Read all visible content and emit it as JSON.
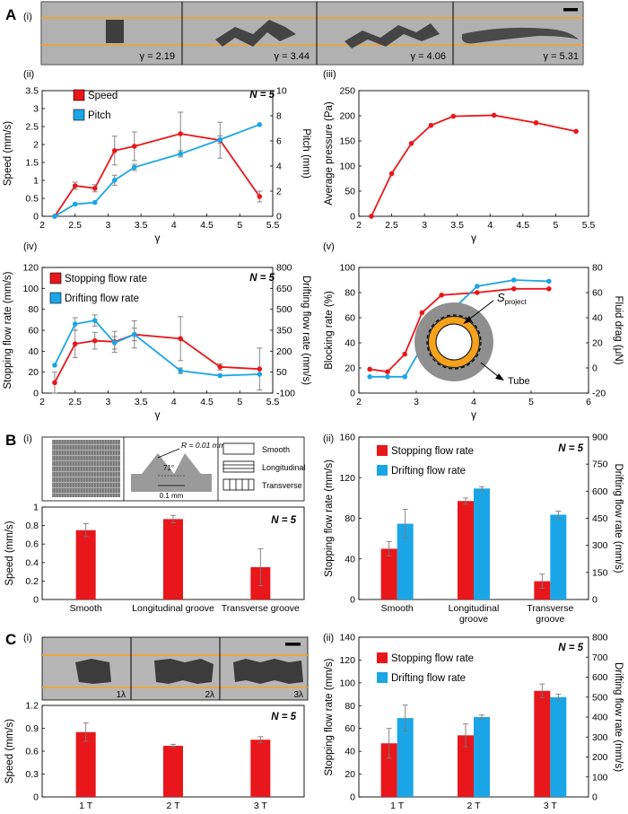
{
  "panel_letters": {
    "A": "A",
    "B": "B",
    "C": "C"
  },
  "sub_labels": {
    "i": "(i)",
    "ii": "(ii)",
    "iii": "(iii)",
    "iv": "(iv)",
    "v": "(v)"
  },
  "n_label": "N = 5",
  "colors": {
    "red": "#e8171b",
    "blue": "#1aa6e6",
    "orange": "#f7a21b",
    "error": "#7a7a7a"
  },
  "images": {
    "a_strip_labels": [
      "γ = 2.19",
      "γ = 3.44",
      "γ = 4.06",
      "γ = 5.31"
    ],
    "c_strip_labels": [
      "1λ",
      "2λ",
      "3λ"
    ],
    "tube_label": "Tube",
    "sproject_label": "S",
    "sproject_sub": "project",
    "groove_R_label": "R = 0.01 mm",
    "groove_angle_label": "71°",
    "groove_width_label": "0.1 mm",
    "legend_smooth": "Smooth",
    "legend_longitudinal": "Longitudinal",
    "legend_transverse": "Transverse"
  },
  "chart_data": [
    {
      "id": "A-ii",
      "type": "line",
      "xlabel": "γ",
      "ylabel": "Speed (mm/s)",
      "y2label": "Pitch (mm)",
      "xlim": [
        2,
        5.5
      ],
      "ylim": [
        0,
        3.5
      ],
      "y2lim": [
        0,
        10
      ],
      "x_ticks": [
        2,
        2.5,
        3,
        3.5,
        4,
        4.5,
        5,
        5.5
      ],
      "y_ticks": [
        0,
        0.5,
        1,
        1.5,
        2,
        2.5,
        3,
        3.5
      ],
      "y2_ticks": [
        0,
        2,
        4,
        6,
        8,
        10
      ],
      "series": [
        {
          "name": "Speed",
          "axis": "left",
          "x": [
            2.19,
            2.5,
            2.8,
            3.1,
            3.4,
            4.1,
            4.7,
            5.3
          ],
          "values": [
            0,
            0.85,
            0.78,
            1.83,
            1.95,
            2.3,
            2.12,
            0.55
          ],
          "err": [
            0,
            0.1,
            0.1,
            0.4,
            0.4,
            0.6,
            0.5,
            0.15
          ]
        },
        {
          "name": "Pitch",
          "axis": "right",
          "x": [
            2.19,
            2.5,
            2.8,
            3.1,
            3.4,
            4.1,
            4.7,
            5.3
          ],
          "values": [
            0,
            0.97,
            1.1,
            2.87,
            3.9,
            4.97,
            6.1,
            7.3
          ],
          "err": [
            0,
            0,
            0,
            0.4,
            0.25,
            0.25,
            0.3,
            0
          ]
        }
      ]
    },
    {
      "id": "A-iii",
      "type": "line",
      "xlabel": "γ",
      "ylabel": "Average pressure (Pa)",
      "xlim": [
        2,
        5.5
      ],
      "ylim": [
        0,
        250
      ],
      "x_ticks": [
        2,
        2.5,
        3,
        3.5,
        4,
        4.5,
        5,
        5.5
      ],
      "y_ticks": [
        0,
        50,
        100,
        150,
        200,
        250
      ],
      "series": [
        {
          "name": "Average pressure",
          "axis": "left",
          "x": [
            2.19,
            2.5,
            2.8,
            3.1,
            3.44,
            4.06,
            4.7,
            5.31
          ],
          "values": [
            0,
            85,
            145,
            181,
            199,
            201,
            186,
            169
          ]
        }
      ]
    },
    {
      "id": "A-iv",
      "type": "line",
      "xlabel": "γ",
      "ylabel": "Stopping flow rate (mm/s)",
      "y2label": "Drifting flow rate (mm/s)",
      "xlim": [
        2,
        5.5
      ],
      "ylim": [
        0,
        120
      ],
      "y2lim": [
        -100,
        800
      ],
      "x_ticks": [
        2,
        2.5,
        3,
        3.5,
        4,
        4.5,
        5,
        5.5
      ],
      "y_ticks": [
        0,
        20,
        40,
        60,
        80,
        100,
        120
      ],
      "y2_ticks": [
        -100,
        50,
        200,
        350,
        500,
        650,
        800
      ],
      "series": [
        {
          "name": "Stopping flow rate",
          "axis": "left",
          "x": [
            2.19,
            2.5,
            2.8,
            3.1,
            3.4,
            4.1,
            4.7,
            5.3
          ],
          "values": [
            10,
            47,
            50,
            49,
            56,
            52,
            25,
            23
          ],
          "err": [
            10,
            13,
            8,
            10,
            13,
            21,
            3,
            20
          ]
        },
        {
          "name": "Drifting flow rate",
          "axis": "right",
          "x": [
            2.19,
            2.5,
            2.8,
            3.1,
            3.4,
            4.1,
            4.7,
            5.3
          ],
          "values": [
            100,
            395,
            420,
            260,
            320,
            60,
            25,
            35
          ],
          "err": [
            0,
            45,
            40,
            45,
            45,
            20,
            0,
            0
          ]
        }
      ]
    },
    {
      "id": "A-v",
      "type": "line",
      "xlabel": "γ",
      "ylabel": "Blocking rate (%)",
      "y2label": "Fluid drag (μN)",
      "xlim": [
        2,
        6
      ],
      "ylim": [
        0,
        100
      ],
      "y2lim": [
        -20,
        80
      ],
      "x_ticks": [
        2,
        3,
        4,
        5,
        6
      ],
      "y_ticks": [
        0,
        20,
        40,
        60,
        80,
        100
      ],
      "y2_ticks": [
        -20,
        0,
        20,
        40,
        60,
        80
      ],
      "series": [
        {
          "name": "Blocking rate",
          "axis": "left",
          "x": [
            2.19,
            2.5,
            2.8,
            3.1,
            3.44,
            4.06,
            4.7,
            5.31
          ],
          "values": [
            19,
            17,
            31,
            64,
            78,
            80,
            83,
            83
          ]
        },
        {
          "name": "Fluid drag",
          "axis": "right",
          "x": [
            2.19,
            2.5,
            2.8,
            3.1,
            3.44,
            4.06,
            4.7,
            5.31
          ],
          "values": [
            -7,
            -7,
            -7,
            17,
            38,
            65,
            70,
            69
          ]
        }
      ]
    },
    {
      "id": "B-i",
      "type": "bar",
      "ylabel": "Speed (mm/s)",
      "categories": [
        "Smooth",
        "Longitudinal groove",
        "Transverse groove"
      ],
      "ylim": [
        0,
        1
      ],
      "y_ticks": [
        0,
        0.2,
        0.4,
        0.6,
        0.8,
        1
      ],
      "series": [
        {
          "name": "Speed",
          "values": [
            0.75,
            0.87,
            0.35
          ],
          "err": [
            0.07,
            0.04,
            0.2
          ]
        }
      ]
    },
    {
      "id": "B-ii",
      "type": "bar",
      "ylabel": "Stopping flow rate (mm/s)",
      "y2label": "Drifting flow rate (mm/s)",
      "categories": [
        "Smooth",
        "Longitudinal\ngroove",
        "Transverse\ngroove"
      ],
      "ylim": [
        0,
        160
      ],
      "y2lim": [
        0,
        900
      ],
      "y_ticks": [
        0,
        40,
        80,
        120,
        160
      ],
      "y2_ticks": [
        0,
        150,
        300,
        450,
        600,
        750,
        900
      ],
      "series": [
        {
          "name": "Stopping flow rate",
          "axis": "left",
          "values": [
            50,
            97,
            18
          ],
          "err": [
            7,
            3,
            7
          ]
        },
        {
          "name": "Drifting flow rate",
          "axis": "right",
          "values": [
            420,
            615,
            470
          ],
          "err": [
            80,
            10,
            20
          ]
        }
      ]
    },
    {
      "id": "C-i",
      "type": "bar",
      "ylabel": "Speed (mm/s)",
      "categories": [
        "1 T",
        "2 T",
        "3 T"
      ],
      "ylim": [
        0,
        1.2
      ],
      "y_ticks": [
        0,
        0.3,
        0.6,
        0.9,
        1.2
      ],
      "series": [
        {
          "name": "Speed",
          "values": [
            0.85,
            0.67,
            0.75
          ],
          "err": [
            0.12,
            0.02,
            0.04
          ]
        }
      ]
    },
    {
      "id": "C-ii",
      "type": "bar",
      "ylabel": "Stopping flow rate (mm/s)",
      "y2label": "Drifting flow rate (mm/s)",
      "categories": [
        "1 T",
        "2 T",
        "3 T"
      ],
      "ylim": [
        0,
        140
      ],
      "y2lim": [
        0,
        800
      ],
      "y_ticks": [
        0,
        20,
        40,
        60,
        80,
        100,
        120,
        140
      ],
      "y2_ticks": [
        0,
        100,
        200,
        300,
        400,
        500,
        600,
        700,
        800
      ],
      "series": [
        {
          "name": "Stopping flow rate",
          "axis": "left",
          "values": [
            47,
            54,
            93
          ],
          "err": [
            13,
            10,
            6
          ]
        },
        {
          "name": "Drifting flow rate",
          "axis": "right",
          "values": [
            395,
            400,
            500
          ],
          "err": [
            65,
            10,
            15
          ]
        }
      ]
    }
  ]
}
